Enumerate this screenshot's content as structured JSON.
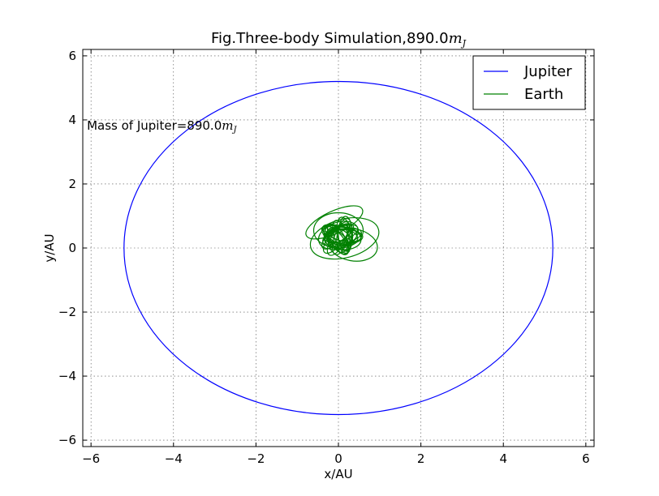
{
  "chart_data": {
    "type": "line",
    "title": "Fig.Three-body Simulation,890.0",
    "title_math": "m",
    "title_math_sub": "J",
    "xlabel": "x/AU",
    "ylabel": "y/AU",
    "xlim": [
      -6.2,
      6.2
    ],
    "ylim": [
      -6.2,
      6.2
    ],
    "xticks": [
      -6,
      -4,
      -2,
      0,
      2,
      4,
      6
    ],
    "yticks": [
      -6,
      -4,
      -2,
      0,
      2,
      4,
      6
    ],
    "grid": true,
    "legend_position": "top-right",
    "annotation": {
      "text": "Mass of Jupiter=890.0",
      "math": "m",
      "math_sub": "J",
      "x": -6.1,
      "y": 3.7
    },
    "series": [
      {
        "name": "Jupiter",
        "color": "#0000ff",
        "shape": "ellipse",
        "center": [
          0,
          0
        ],
        "semi_axis_x": 5.2,
        "semi_axis_y": 5.2
      },
      {
        "name": "Earth",
        "color": "#008000",
        "shape": "precessing-loops",
        "loops": [
          {
            "cx": -0.1,
            "cy": 0.8,
            "rx": 0.75,
            "ry": 0.35,
            "angle": -25
          },
          {
            "cx": 0.15,
            "cy": 0.3,
            "rx": 0.85,
            "ry": 0.6,
            "angle": -15
          },
          {
            "cx": 0.0,
            "cy": 0.55,
            "rx": 0.6,
            "ry": 0.55,
            "angle": 0
          },
          {
            "cx": 0.35,
            "cy": 0.1,
            "rx": 0.6,
            "ry": 0.5,
            "angle": 10
          },
          {
            "cx": 0.0,
            "cy": 0.4,
            "rx": 0.5,
            "ry": 0.4,
            "angle": -20
          },
          {
            "cx": 0.1,
            "cy": 0.3,
            "rx": 0.45,
            "ry": 0.35,
            "angle": 5
          },
          {
            "cx": 0.05,
            "cy": 0.35,
            "rx": 0.4,
            "ry": 0.3,
            "angle": -10
          },
          {
            "cx": 0.0,
            "cy": 0.4,
            "rx": 0.35,
            "ry": 0.3,
            "angle": 15
          },
          {
            "cx": 0.05,
            "cy": 0.35,
            "rx": 0.3,
            "ry": 0.25,
            "angle": -5
          }
        ]
      }
    ]
  }
}
